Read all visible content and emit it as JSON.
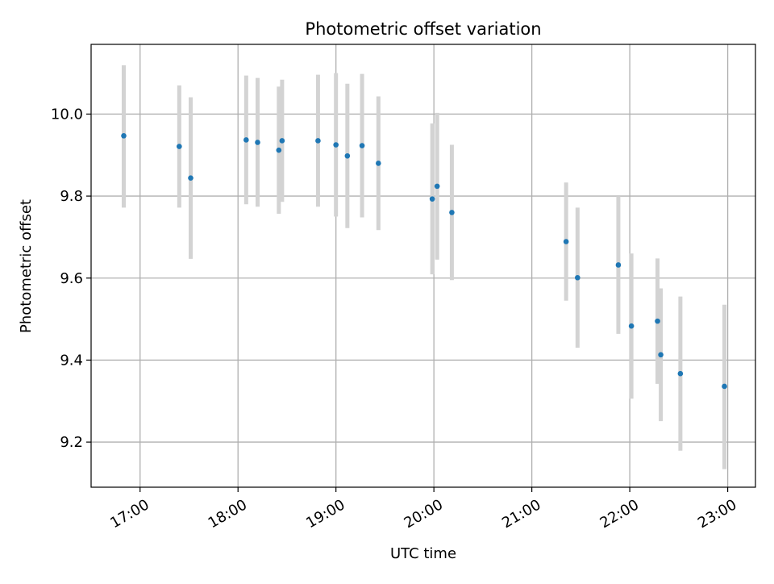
{
  "chart_data": {
    "type": "scatter",
    "title": "Photometric offset variation",
    "xlabel": "UTC time",
    "ylabel": "Photometric offset",
    "xlim": [
      "16:30",
      "23:17"
    ],
    "ylim": [
      9.09,
      10.17
    ],
    "grid": true,
    "x_ticks": [
      "17:00",
      "18:00",
      "19:00",
      "20:00",
      "21:00",
      "22:00",
      "23:00"
    ],
    "y_ticks": [
      "9.2",
      "9.4",
      "9.6",
      "9.8",
      "10.0"
    ],
    "colors": {
      "point": "#1f77b4",
      "errorbar": "#d3d3d3",
      "grid": "#b0b0b0"
    },
    "points": [
      {
        "x": "16:50",
        "y": 9.947,
        "lo": 9.772,
        "hi": 10.119
      },
      {
        "x": "17:24",
        "y": 9.921,
        "lo": 9.772,
        "hi": 10.07
      },
      {
        "x": "17:31",
        "y": 9.844,
        "lo": 9.647,
        "hi": 10.041
      },
      {
        "x": "18:05",
        "y": 9.937,
        "lo": 9.78,
        "hi": 10.094
      },
      {
        "x": "18:12",
        "y": 9.931,
        "lo": 9.774,
        "hi": 10.088
      },
      {
        "x": "18:25",
        "y": 9.912,
        "lo": 9.757,
        "hi": 10.067
      },
      {
        "x": "18:27",
        "y": 9.935,
        "lo": 9.786,
        "hi": 10.084
      },
      {
        "x": "18:49",
        "y": 9.935,
        "lo": 9.774,
        "hi": 10.096
      },
      {
        "x": "19:00",
        "y": 9.925,
        "lo": 9.75,
        "hi": 10.1
      },
      {
        "x": "19:07",
        "y": 9.898,
        "lo": 9.722,
        "hi": 10.074
      },
      {
        "x": "19:16",
        "y": 9.923,
        "lo": 9.748,
        "hi": 10.098
      },
      {
        "x": "19:26",
        "y": 9.88,
        "lo": 9.717,
        "hi": 10.043
      },
      {
        "x": "19:59",
        "y": 9.793,
        "lo": 9.609,
        "hi": 9.977
      },
      {
        "x": "20:02",
        "y": 9.824,
        "lo": 9.645,
        "hi": 10.003
      },
      {
        "x": "20:11",
        "y": 9.76,
        "lo": 9.595,
        "hi": 9.925
      },
      {
        "x": "21:21",
        "y": 9.689,
        "lo": 9.545,
        "hi": 9.833
      },
      {
        "x": "21:28",
        "y": 9.601,
        "lo": 9.43,
        "hi": 9.772
      },
      {
        "x": "21:53",
        "y": 9.632,
        "lo": 9.464,
        "hi": 9.8
      },
      {
        "x": "22:01",
        "y": 9.483,
        "lo": 9.306,
        "hi": 9.66
      },
      {
        "x": "22:17",
        "y": 9.495,
        "lo": 9.342,
        "hi": 9.648
      },
      {
        "x": "22:19",
        "y": 9.413,
        "lo": 9.251,
        "hi": 9.575
      },
      {
        "x": "22:31",
        "y": 9.367,
        "lo": 9.179,
        "hi": 9.555
      },
      {
        "x": "22:58",
        "y": 9.336,
        "lo": 9.134,
        "hi": 9.535
      }
    ]
  }
}
